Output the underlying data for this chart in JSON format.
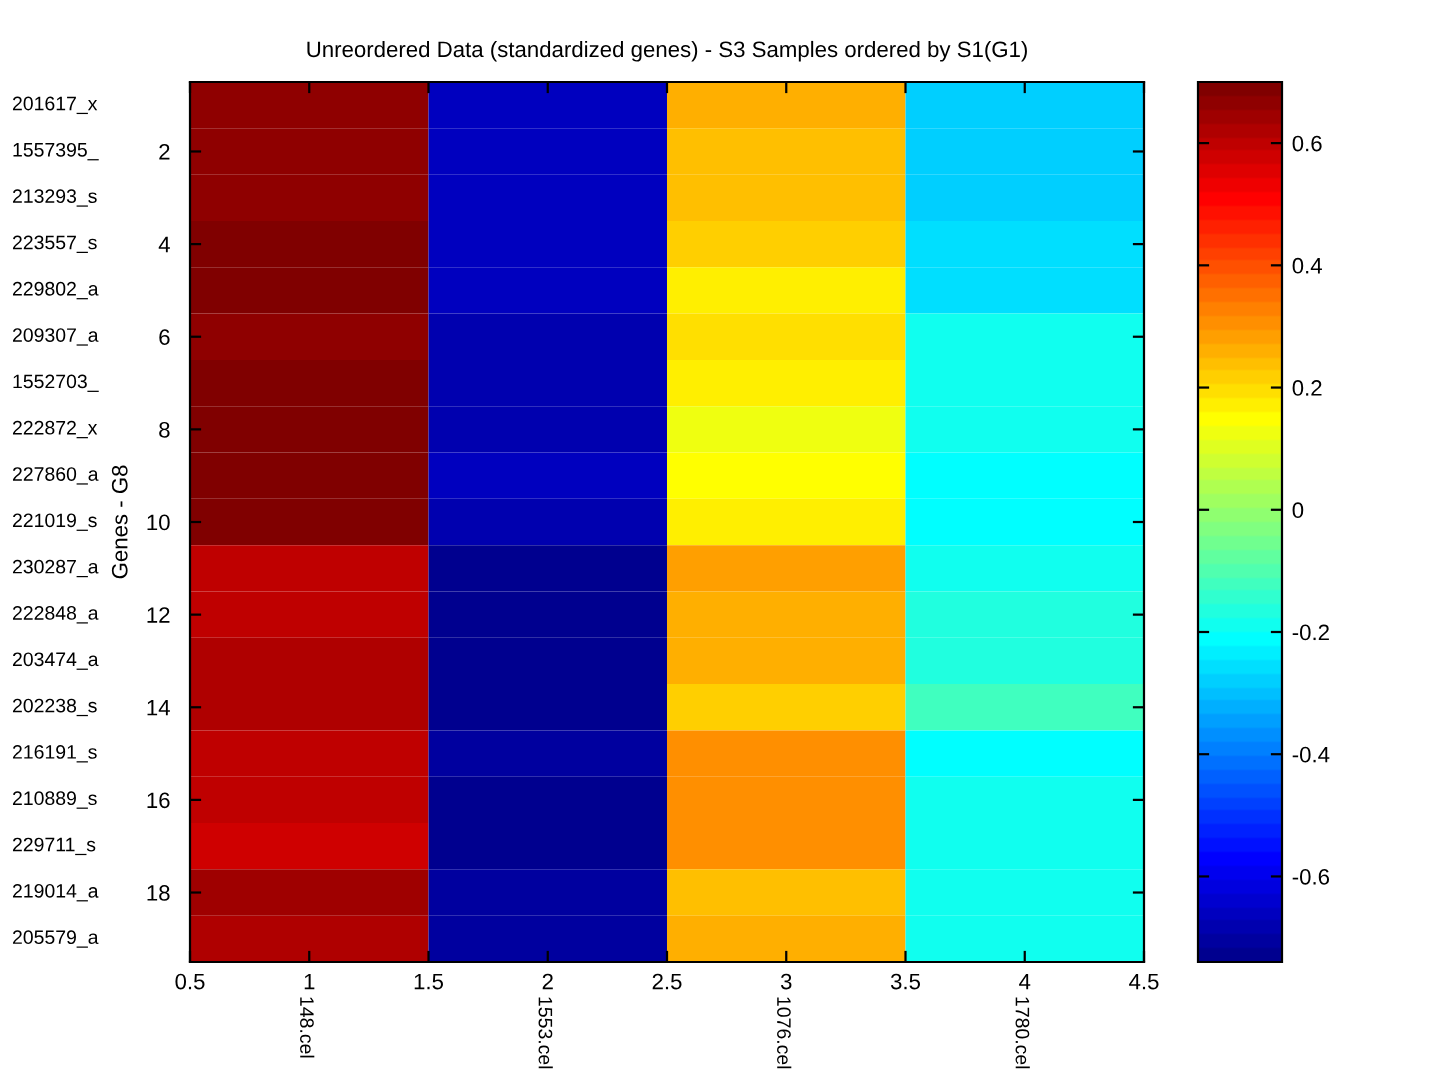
{
  "chart_data": {
    "type": "heatmap",
    "title": "Unreordered Data (standardized genes) - S3 Samples ordered by S1(G1)",
    "ylabel": "Genes - G8",
    "x": [
      1,
      2,
      3,
      4
    ],
    "xlim": [
      0.5,
      4.5
    ],
    "xticks": [
      0.5,
      1,
      1.5,
      2,
      2.5,
      3,
      3.5,
      4,
      4.5
    ],
    "y_categories": [
      "201617_x",
      "1557395_",
      "213293_s",
      "223557_s",
      "229802_a",
      "209307_a",
      "1552703_",
      "222872_x",
      "227860_a",
      "221019_s",
      "230287_a",
      "222848_a",
      "203474_a",
      "202238_s",
      "216191_s",
      "210889_s",
      "229711_s",
      "219014_a",
      "205579_a"
    ],
    "y2_categories": [
      null,
      "2",
      null,
      "4",
      null,
      "6",
      null,
      "8",
      null,
      "10",
      null,
      "12",
      null,
      "14",
      null,
      "16",
      null,
      "18",
      null
    ],
    "cells": [
      [
        0.67,
        -0.66,
        0.27,
        -0.27
      ],
      [
        0.67,
        -0.66,
        0.24,
        -0.27
      ],
      [
        0.67,
        -0.66,
        0.24,
        -0.27
      ],
      [
        0.69,
        -0.66,
        0.22,
        -0.25
      ],
      [
        0.69,
        -0.66,
        0.18,
        -0.25
      ],
      [
        0.67,
        -0.68,
        0.2,
        -0.18
      ],
      [
        0.69,
        -0.68,
        0.18,
        -0.18
      ],
      [
        0.69,
        -0.68,
        0.13,
        -0.18
      ],
      [
        0.69,
        -0.66,
        0.15,
        -0.21
      ],
      [
        0.69,
        -0.68,
        0.18,
        -0.21
      ],
      [
        0.6,
        -0.72,
        0.29,
        -0.18
      ],
      [
        0.6,
        -0.72,
        0.27,
        -0.16
      ],
      [
        0.63,
        -0.72,
        0.27,
        -0.16
      ],
      [
        0.63,
        -0.72,
        0.22,
        -0.12
      ],
      [
        0.6,
        -0.7,
        0.31,
        -0.21
      ],
      [
        0.6,
        -0.72,
        0.31,
        -0.18
      ],
      [
        0.58,
        -0.72,
        0.31,
        -0.18
      ],
      [
        0.65,
        -0.7,
        0.24,
        -0.18
      ],
      [
        0.63,
        -0.7,
        0.27,
        -0.18
      ]
    ],
    "clim": [
      -0.74,
      0.7
    ],
    "cticks": [
      -0.6,
      -0.4,
      -0.2,
      0,
      0.2,
      0.4,
      0.6
    ],
    "annotations": [
      "148.cel",
      "1553.cel",
      "1076.cel",
      "1780.cel"
    ]
  }
}
